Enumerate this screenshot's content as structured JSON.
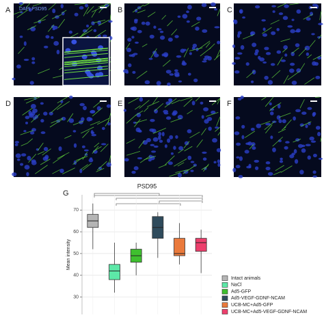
{
  "panels": [
    {
      "label": "A",
      "stain": "DAPI PSD95"
    },
    {
      "label": "B"
    },
    {
      "label": "C"
    },
    {
      "label": "D"
    },
    {
      "label": "E"
    },
    {
      "label": "F"
    }
  ],
  "chart_data": {
    "type": "box",
    "label": "G",
    "title": "PSD95",
    "y_label": "Mean intensity",
    "categories": [
      "Intact animals",
      "NaCl",
      "Ad5-GFP",
      "Ad5-VEGF-GDNF-NCAM",
      "UCB-MC+Ad5-GFP",
      "UCB-MC+Ad5-VEGF-GDNF-NCAM"
    ],
    "colors": [
      "#b5b5b5",
      "#5de8a8",
      "#3fbf2f",
      "#2f4b5c",
      "#ea7a3c",
      "#ec3f6c"
    ],
    "boxes": [
      {
        "min": 52,
        "q1": 62,
        "median": 65,
        "q3": 68,
        "max": 73
      },
      {
        "min": 32,
        "q1": 38,
        "median": 42,
        "q3": 45,
        "max": 55
      },
      {
        "min": 40,
        "q1": 46,
        "median": 49,
        "q3": 52,
        "max": 55
      },
      {
        "min": 48,
        "q1": 57,
        "median": 62,
        "q3": 67,
        "max": 69
      },
      {
        "min": 45,
        "q1": 49,
        "median": 50,
        "q3": 57,
        "max": 64
      },
      {
        "min": 41,
        "q1": 51,
        "median": 55,
        "q3": 57,
        "max": 61
      }
    ],
    "ylim": [
      22,
      77
    ],
    "yticks": [
      30,
      40,
      50,
      60,
      70
    ],
    "grid": true
  }
}
